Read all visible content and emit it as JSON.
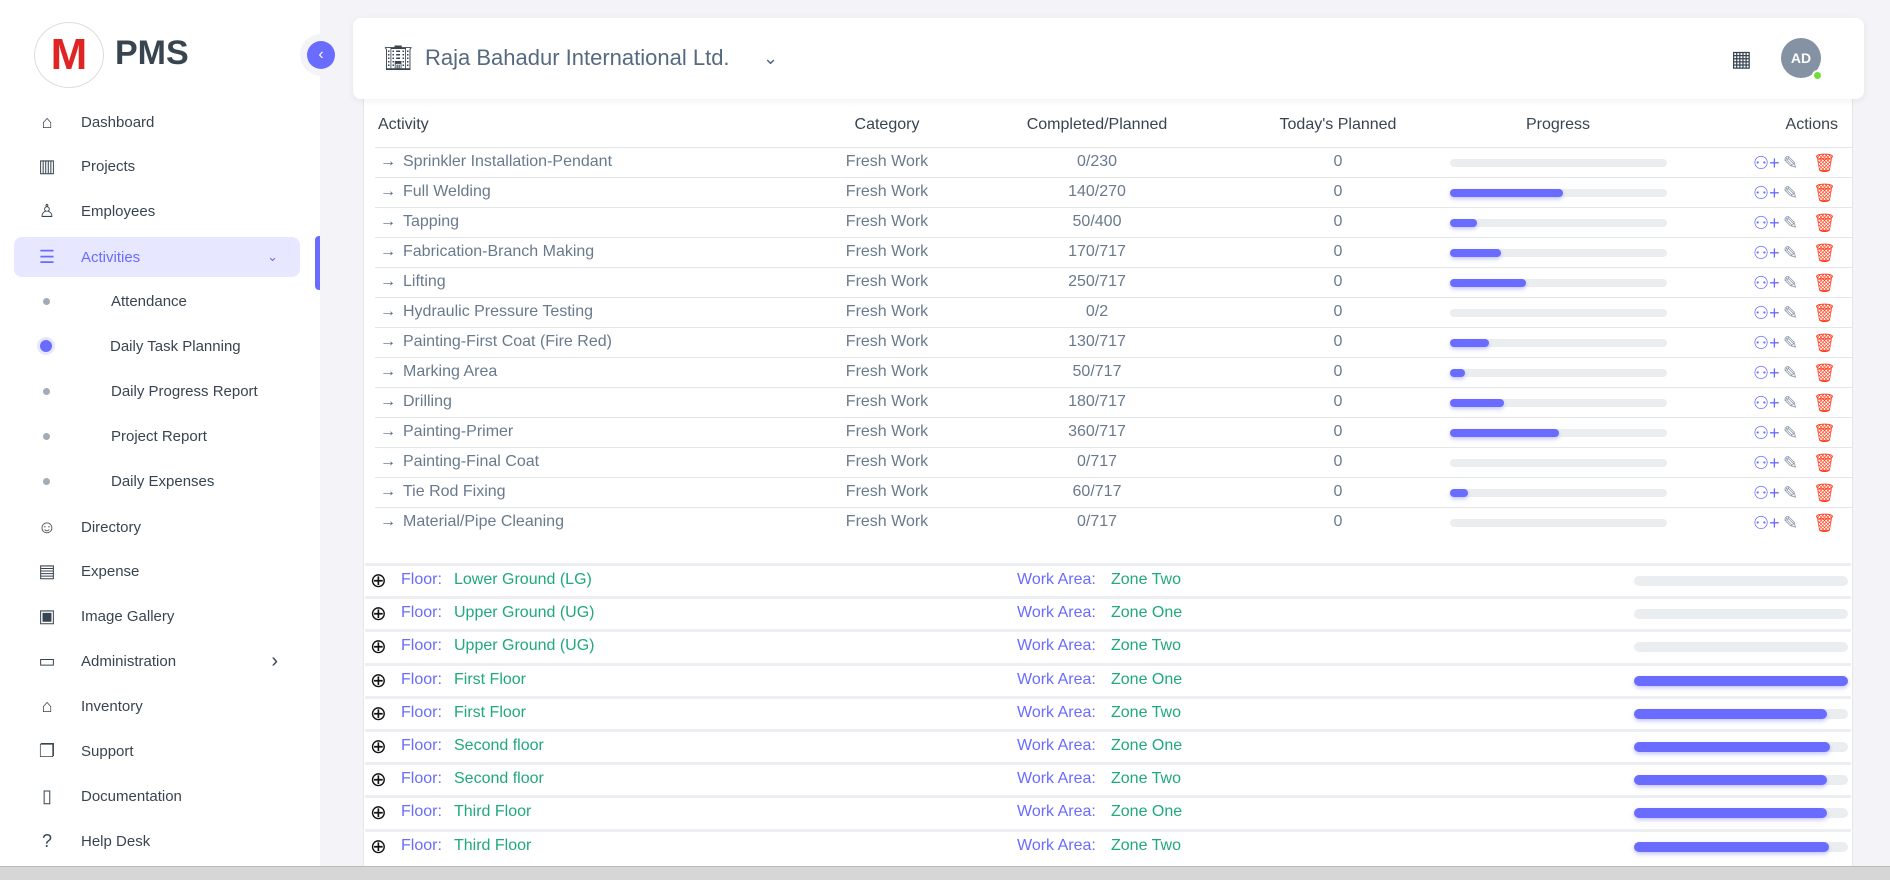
{
  "brand": {
    "logo_letter": "M",
    "name": "PMS",
    "logo_color": "#e02424"
  },
  "accent": "#696cff",
  "sidebar": {
    "items": [
      {
        "label": "Dashboard",
        "icon": "home-icon"
      },
      {
        "label": "Projects",
        "icon": "building-icon"
      },
      {
        "label": "Employees",
        "icon": "user-icon"
      },
      {
        "label": "Activities",
        "icon": "list-icon",
        "active": true,
        "expanded": true
      },
      {
        "label": "Directory",
        "icon": "contacts-icon"
      },
      {
        "label": "Expense",
        "icon": "receipt-icon"
      },
      {
        "label": "Image Gallery",
        "icon": "gallery-icon"
      },
      {
        "label": "Administration",
        "icon": "archive-icon",
        "has_children": true
      },
      {
        "label": "Inventory",
        "icon": "store-icon"
      },
      {
        "label": "Support",
        "icon": "copy-icon"
      },
      {
        "label": "Documentation",
        "icon": "book-icon"
      },
      {
        "label": "Help Desk",
        "icon": "question-icon"
      }
    ],
    "sub_items": [
      {
        "label": "Attendance",
        "active": false
      },
      {
        "label": "Daily Task Planning",
        "active": true
      },
      {
        "label": "Daily Progress Report",
        "active": false
      },
      {
        "label": "Project Report",
        "active": false
      },
      {
        "label": "Daily Expenses",
        "active": false
      }
    ]
  },
  "header": {
    "project": "Raja Bahadur International Ltd.",
    "avatar_initials": "AD"
  },
  "table": {
    "columns": [
      "Activity",
      "Category",
      "Completed/Planned",
      "Today's Planned",
      "Progress",
      "Actions"
    ],
    "rows": [
      {
        "activity": "Sprinkler Installation-Pendant",
        "category": "Fresh Work",
        "completed": "0/230",
        "today": "0",
        "progress": 0
      },
      {
        "activity": "Full Welding",
        "category": "Fresh Work",
        "completed": "140/270",
        "today": "0",
        "progress": 0.52
      },
      {
        "activity": "Tapping",
        "category": "Fresh Work",
        "completed": "50/400",
        "today": "0",
        "progress": 0.125
      },
      {
        "activity": "Fabrication-Branch Making",
        "category": "Fresh Work",
        "completed": "170/717",
        "today": "0",
        "progress": 0.237
      },
      {
        "activity": "Lifting",
        "category": "Fresh Work",
        "completed": "250/717",
        "today": "0",
        "progress": 0.349
      },
      {
        "activity": "Hydraulic Pressure Testing",
        "category": "Fresh Work",
        "completed": "0/2",
        "today": "0",
        "progress": 0
      },
      {
        "activity": "Painting-First Coat (Fire Red)",
        "category": "Fresh Work",
        "completed": "130/717",
        "today": "0",
        "progress": 0.181
      },
      {
        "activity": "Marking Area",
        "category": "Fresh Work",
        "completed": "50/717",
        "today": "0",
        "progress": 0.07
      },
      {
        "activity": "Drilling",
        "category": "Fresh Work",
        "completed": "180/717",
        "today": "0",
        "progress": 0.251
      },
      {
        "activity": "Painting-Primer",
        "category": "Fresh Work",
        "completed": "360/717",
        "today": "0",
        "progress": 0.502
      },
      {
        "activity": "Painting-Final Coat",
        "category": "Fresh Work",
        "completed": "0/717",
        "today": "0",
        "progress": 0
      },
      {
        "activity": "Tie Rod Fixing",
        "category": "Fresh Work",
        "completed": "60/717",
        "today": "0",
        "progress": 0.084
      },
      {
        "activity": "Material/Pipe Cleaning",
        "category": "Fresh Work",
        "completed": "0/717",
        "today": "0",
        "progress": 0
      }
    ]
  },
  "floors": {
    "floor_label": "Floor:",
    "area_label": "Work Area:",
    "label_color": "#696cff",
    "value_color": "#20a87e",
    "rows": [
      {
        "floor": "Lower Ground (LG)",
        "area": "Zone Two",
        "progress": 0
      },
      {
        "floor": "Upper Ground (UG)",
        "area": "Zone One",
        "progress": 0
      },
      {
        "floor": "Upper Ground (UG)",
        "area": "Zone Two",
        "progress": 0
      },
      {
        "floor": "First Floor",
        "area": "Zone One",
        "progress": 1.0
      },
      {
        "floor": "First Floor",
        "area": "Zone Two",
        "progress": 0.9
      },
      {
        "floor": "Second floor",
        "area": "Zone One",
        "progress": 0.915
      },
      {
        "floor": "Second floor",
        "area": "Zone Two",
        "progress": 0.9
      },
      {
        "floor": "Third Floor",
        "area": "Zone One",
        "progress": 0.9
      },
      {
        "floor": "Third Floor",
        "area": "Zone Two",
        "progress": 0.91
      }
    ]
  }
}
